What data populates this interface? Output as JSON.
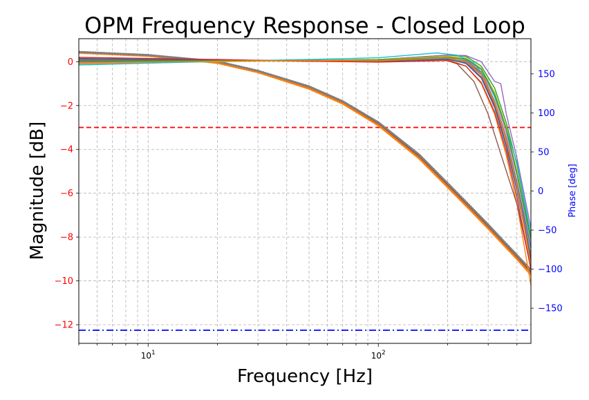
{
  "chart_data": {
    "type": "line",
    "title": "OPM Frequency Response - Closed Loop",
    "xlabel": "Frequency [Hz]",
    "ylabel": "Magnitude [dB]",
    "y2label": "Phase [deg]",
    "xscale": "log",
    "xlim": [
      5,
      460
    ],
    "ylim": [
      -12.85,
      1.05
    ],
    "y2lim": [
      -195,
      195
    ],
    "grid": true,
    "legend": "none",
    "x_ticks": [
      {
        "value": 10,
        "base": "10",
        "exp": "1"
      },
      {
        "value": 100,
        "base": "10",
        "exp": "2"
      }
    ],
    "y_ticks": [
      0,
      -2,
      -4,
      -6,
      -8,
      -10,
      -12
    ],
    "y_tick_labels": [
      "0",
      "−2",
      "−4",
      "−6",
      "−8",
      "−10",
      "−12"
    ],
    "y2_ticks": [
      150,
      100,
      50,
      0,
      -50,
      -100,
      -150
    ],
    "y2_tick_labels": [
      "150",
      "100",
      "50",
      "0",
      "−50",
      "−100",
      "−150"
    ],
    "reference_lines": [
      {
        "y": -3,
        "style": "dashed",
        "color": "#ff0000"
      },
      {
        "y": -12.25,
        "style": "dashdot",
        "color": "#0000ff"
      }
    ],
    "colors": {
      "magnitude_axis": "#ff0000",
      "phase_axis": "#0000ff",
      "grid": "#b0b0b0"
    },
    "magnitude_series": [
      {
        "color": "#1f77b4",
        "x": [
          5,
          20,
          50,
          100,
          200,
          240,
          280,
          320,
          360,
          400,
          460
        ],
        "values": [
          -0.1,
          0.03,
          0.06,
          0.05,
          0.15,
          0.05,
          -0.5,
          -1.8,
          -3.5,
          -5.5,
          -8.5
        ]
      },
      {
        "color": "#ff7f0e",
        "x": [
          5,
          20,
          50,
          100,
          200,
          240,
          280,
          320,
          360,
          400,
          460
        ],
        "values": [
          0.1,
          0.05,
          0.02,
          0.0,
          0.1,
          -0.2,
          -1.0,
          -2.4,
          -4.3,
          -6.5,
          -10.2
        ]
      },
      {
        "color": "#2ca02c",
        "x": [
          5,
          20,
          50,
          100,
          200,
          240,
          280,
          320,
          360,
          400,
          460
        ],
        "values": [
          -0.05,
          0.04,
          0.05,
          0.1,
          0.3,
          0.25,
          -0.2,
          -1.2,
          -2.8,
          -4.7,
          -8.0
        ]
      },
      {
        "color": "#d62728",
        "x": [
          5,
          20,
          50,
          100,
          200,
          240,
          280,
          320,
          360,
          400,
          460
        ],
        "values": [
          0.15,
          0.08,
          0.03,
          0.02,
          0.1,
          -0.05,
          -0.7,
          -2.0,
          -3.8,
          -5.8,
          -9.0
        ]
      },
      {
        "color": "#9467bd",
        "x": [
          5,
          20,
          50,
          100,
          200,
          240,
          280,
          320,
          340,
          360,
          400,
          460
        ],
        "values": [
          0.0,
          0.03,
          0.05,
          0.1,
          0.3,
          0.28,
          0.0,
          -0.9,
          -1.0,
          -2.4,
          -4.4,
          -7.6
        ]
      },
      {
        "color": "#8c564b",
        "x": [
          5,
          20,
          50,
          100,
          180,
          220,
          260,
          300,
          340,
          400,
          460
        ],
        "values": [
          0.05,
          0.04,
          0.05,
          0.08,
          0.2,
          -0.1,
          -0.9,
          -2.4,
          -4.2,
          -6.5,
          -9.4
        ]
      },
      {
        "color": "#e377c2",
        "x": [
          5,
          20,
          50,
          100,
          200,
          240,
          280,
          320,
          360,
          400,
          460
        ],
        "values": [
          -0.1,
          0.02,
          0.04,
          0.06,
          0.22,
          0.1,
          -0.45,
          -1.6,
          -3.3,
          -5.2,
          -8.3
        ]
      },
      {
        "color": "#7f7f7f",
        "x": [
          5,
          20,
          50,
          100,
          200,
          240,
          280,
          320,
          360,
          400,
          460
        ],
        "values": [
          0.08,
          0.06,
          0.05,
          0.06,
          0.14,
          -0.02,
          -0.6,
          -1.9,
          -3.6,
          -5.6,
          -8.8
        ]
      },
      {
        "color": "#bcbd22",
        "x": [
          5,
          20,
          50,
          100,
          200,
          240,
          280,
          320,
          360,
          400,
          460
        ],
        "values": [
          -0.12,
          0.0,
          0.06,
          0.1,
          0.25,
          0.18,
          -0.3,
          -1.4,
          -3.0,
          -5.0,
          -8.2
        ]
      },
      {
        "color": "#17becf",
        "x": [
          5,
          20,
          50,
          100,
          180,
          220,
          260,
          300,
          340,
          400,
          460
        ],
        "values": [
          -0.15,
          0.02,
          0.1,
          0.18,
          0.4,
          0.3,
          -0.05,
          -0.9,
          -2.3,
          -4.6,
          -7.9
        ]
      },
      {
        "color": "#1f77b4",
        "x": [
          5,
          20,
          50,
          100,
          200,
          240,
          280,
          320,
          360,
          400,
          460
        ],
        "values": [
          0.12,
          0.07,
          0.04,
          0.03,
          0.12,
          -0.08,
          -0.75,
          -2.1,
          -3.9,
          -5.9,
          -9.1
        ]
      },
      {
        "color": "#d62728",
        "x": [
          5,
          20,
          50,
          100,
          200,
          240,
          280,
          320,
          360,
          400,
          460
        ],
        "values": [
          0.2,
          0.1,
          0.02,
          -0.02,
          0.05,
          -0.2,
          -0.95,
          -2.3,
          -4.1,
          -6.2,
          -9.5
        ]
      },
      {
        "color": "#2ca02c",
        "x": [
          5,
          20,
          50,
          100,
          200,
          240,
          280,
          320,
          360,
          400,
          460
        ],
        "values": [
          0.02,
          0.04,
          0.06,
          0.08,
          0.2,
          0.12,
          -0.35,
          -1.5,
          -3.1,
          -5.1,
          -8.1
        ]
      },
      {
        "color": "#ff7f0e",
        "x": [
          5,
          20,
          50,
          100,
          200,
          240,
          280,
          320,
          360,
          400,
          460
        ],
        "values": [
          -0.05,
          0.03,
          0.05,
          0.04,
          0.18,
          0.02,
          -0.55,
          -1.85,
          -3.6,
          -5.7,
          -9.3
        ]
      }
    ],
    "phase_series": [
      {
        "color": "#8c564b",
        "style": "dotted",
        "x": [
          5,
          10,
          20,
          30,
          50,
          70,
          100,
          150,
          200,
          250,
          300,
          350,
          400,
          460
        ],
        "values": [
          178,
          174,
          165,
          153,
          133,
          114,
          86,
          45,
          8,
          -21,
          -45,
          -66,
          -84,
          -104
        ]
      },
      {
        "color": "#ff7f0e",
        "style": "dotted",
        "x": [
          5,
          10,
          20,
          30,
          50,
          70,
          100,
          150,
          200,
          250,
          300,
          350,
          400,
          460
        ],
        "values": [
          177,
          173,
          164,
          152,
          131,
          112,
          84,
          42,
          5,
          -24,
          -48,
          -69,
          -87,
          -107
        ]
      },
      {
        "color": "#7f7f7f",
        "style": "dotted",
        "x": [
          5,
          10,
          20,
          30,
          50,
          70,
          100,
          150,
          200,
          250,
          300,
          350,
          400,
          460
        ],
        "values": [
          178,
          174,
          166,
          154,
          134,
          115,
          88,
          47,
          10,
          -19,
          -43,
          -64,
          -82,
          -101
        ]
      }
    ]
  }
}
